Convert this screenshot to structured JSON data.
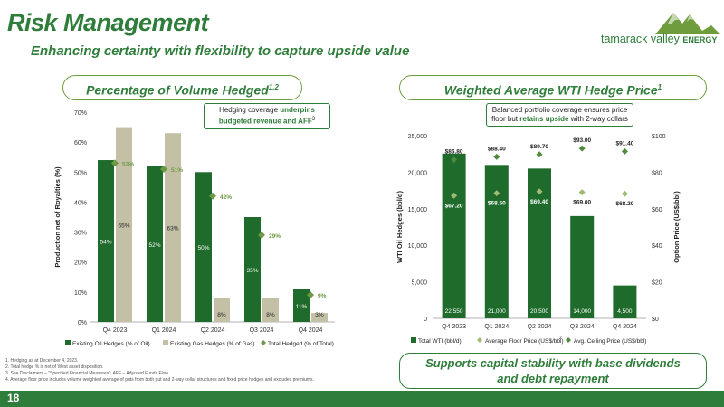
{
  "header": {
    "title": "Risk Management",
    "subtitle": "Enhancing certainty with flexibility to capture upside value",
    "logo_text": "tamarack valley",
    "logo_text_small": "ENERGY"
  },
  "left_panel": {
    "title": "Percentage of Volume Hedged",
    "title_sup": "1,2",
    "callout_line1_plain": "Hedging coverage ",
    "callout_line1_bold": "underpins",
    "callout_line2_bold": "budgeted revenue and AFF",
    "callout_line2_sup": "3"
  },
  "right_panel": {
    "title": "Weighted Average WTI Hedge Price",
    "title_sup": "1",
    "callout_line1": "Balanced portfolio coverage ensures price",
    "callout_line2_plain": "floor but ",
    "callout_line2_bold": "retains upside",
    "callout_line2_tail": " with 2-way collars"
  },
  "bottom_callout": {
    "line1": "Supports capital stability with base dividends",
    "line2": "and debt repayment"
  },
  "footnotes": [
    "1.  Hedging as at December 4, 2023.",
    "2.  Total hedge % is net of  West asset disposition.",
    "3.  See Disclaimers – \"Specified Financial Measures\"; AFF – Adjusted Funds Flow.",
    "4.  Average floor price includes volume weighted average of puts from both put and 2-way collar structures and fixed price hedges and excludes premiums."
  ],
  "page_number": "18",
  "colors": {
    "brand_green": "#2f7d3a",
    "bar_green": "#1f6b2b",
    "gas_tan": "#c4c0a6",
    "marker_green": "#6f9a45",
    "floor_marker": "#9fba72",
    "ceiling_marker": "#4f8a3a"
  },
  "chart_data": [
    {
      "type": "bar",
      "categories": [
        "Q4 2023",
        "Q1 2024",
        "Q2 2024",
        "Q3 2024",
        "Q4 2024"
      ],
      "series": [
        {
          "name": "Existing Oil Hedges (% of Oil)",
          "values": [
            54,
            52,
            50,
            35,
            11
          ],
          "labels": [
            "54%",
            "52%",
            "50%",
            "35%",
            "11%"
          ]
        },
        {
          "name": "Existing Gas Hedges (% of Gas)",
          "values": [
            65,
            63,
            8,
            8,
            3
          ],
          "labels": [
            "65%",
            "63%",
            "8%",
            "8%",
            "3%"
          ]
        },
        {
          "name": "Total Hedged (% of Total)",
          "values": [
            53,
            51,
            42,
            29,
            9
          ],
          "labels": [
            "53%",
            "51%",
            "42%",
            "29%",
            "9%"
          ],
          "kind": "marker"
        }
      ],
      "ylabel": "Production net of Royalties (%)",
      "ylim": [
        0,
        70
      ],
      "yticks": [
        "0%",
        "10%",
        "20%",
        "30%",
        "40%",
        "50%",
        "60%",
        "70%"
      ],
      "legend_position": "bottom"
    },
    {
      "type": "bar",
      "categories": [
        "Q4 2023",
        "Q1 2024",
        "Q2 2024",
        "Q3 2024",
        "Q4 2024"
      ],
      "series": [
        {
          "name": "Total WTI (bbl/d)",
          "values": [
            22550,
            21000,
            20500,
            14000,
            4500
          ],
          "labels": [
            "22,550",
            "21,000",
            "20,500",
            "14,000",
            "4,500"
          ],
          "axis": "left"
        },
        {
          "name": "Average Floor Price (US$/bbl)",
          "name_sup": "2",
          "values": [
            67.2,
            68.5,
            69.4,
            69.0,
            68.2
          ],
          "labels": [
            "$67.20",
            "$68.50",
            "$69.40",
            "$69.00",
            "$68.20"
          ],
          "axis": "right",
          "kind": "marker"
        },
        {
          "name": "Avg. Ceiling Price (US$/bbl)",
          "values": [
            86.8,
            88.4,
            89.7,
            93.0,
            91.4
          ],
          "labels": [
            "$86.80",
            "$88.40",
            "$89.70",
            "$93.00",
            "$91.40"
          ],
          "axis": "right",
          "kind": "marker"
        }
      ],
      "ylabel": "WTI Oil Hedges (bbl/d)",
      "y2label": "Option Price (US$/bbl)",
      "ylim": [
        0,
        25000
      ],
      "y2lim": [
        0,
        100
      ],
      "yticks": [
        "0",
        "5,000",
        "10,000",
        "15,000",
        "20,000",
        "25,000"
      ],
      "y2ticks": [
        "$0",
        "$20",
        "$40",
        "$60",
        "$80",
        "$100"
      ],
      "legend_position": "bottom"
    }
  ]
}
